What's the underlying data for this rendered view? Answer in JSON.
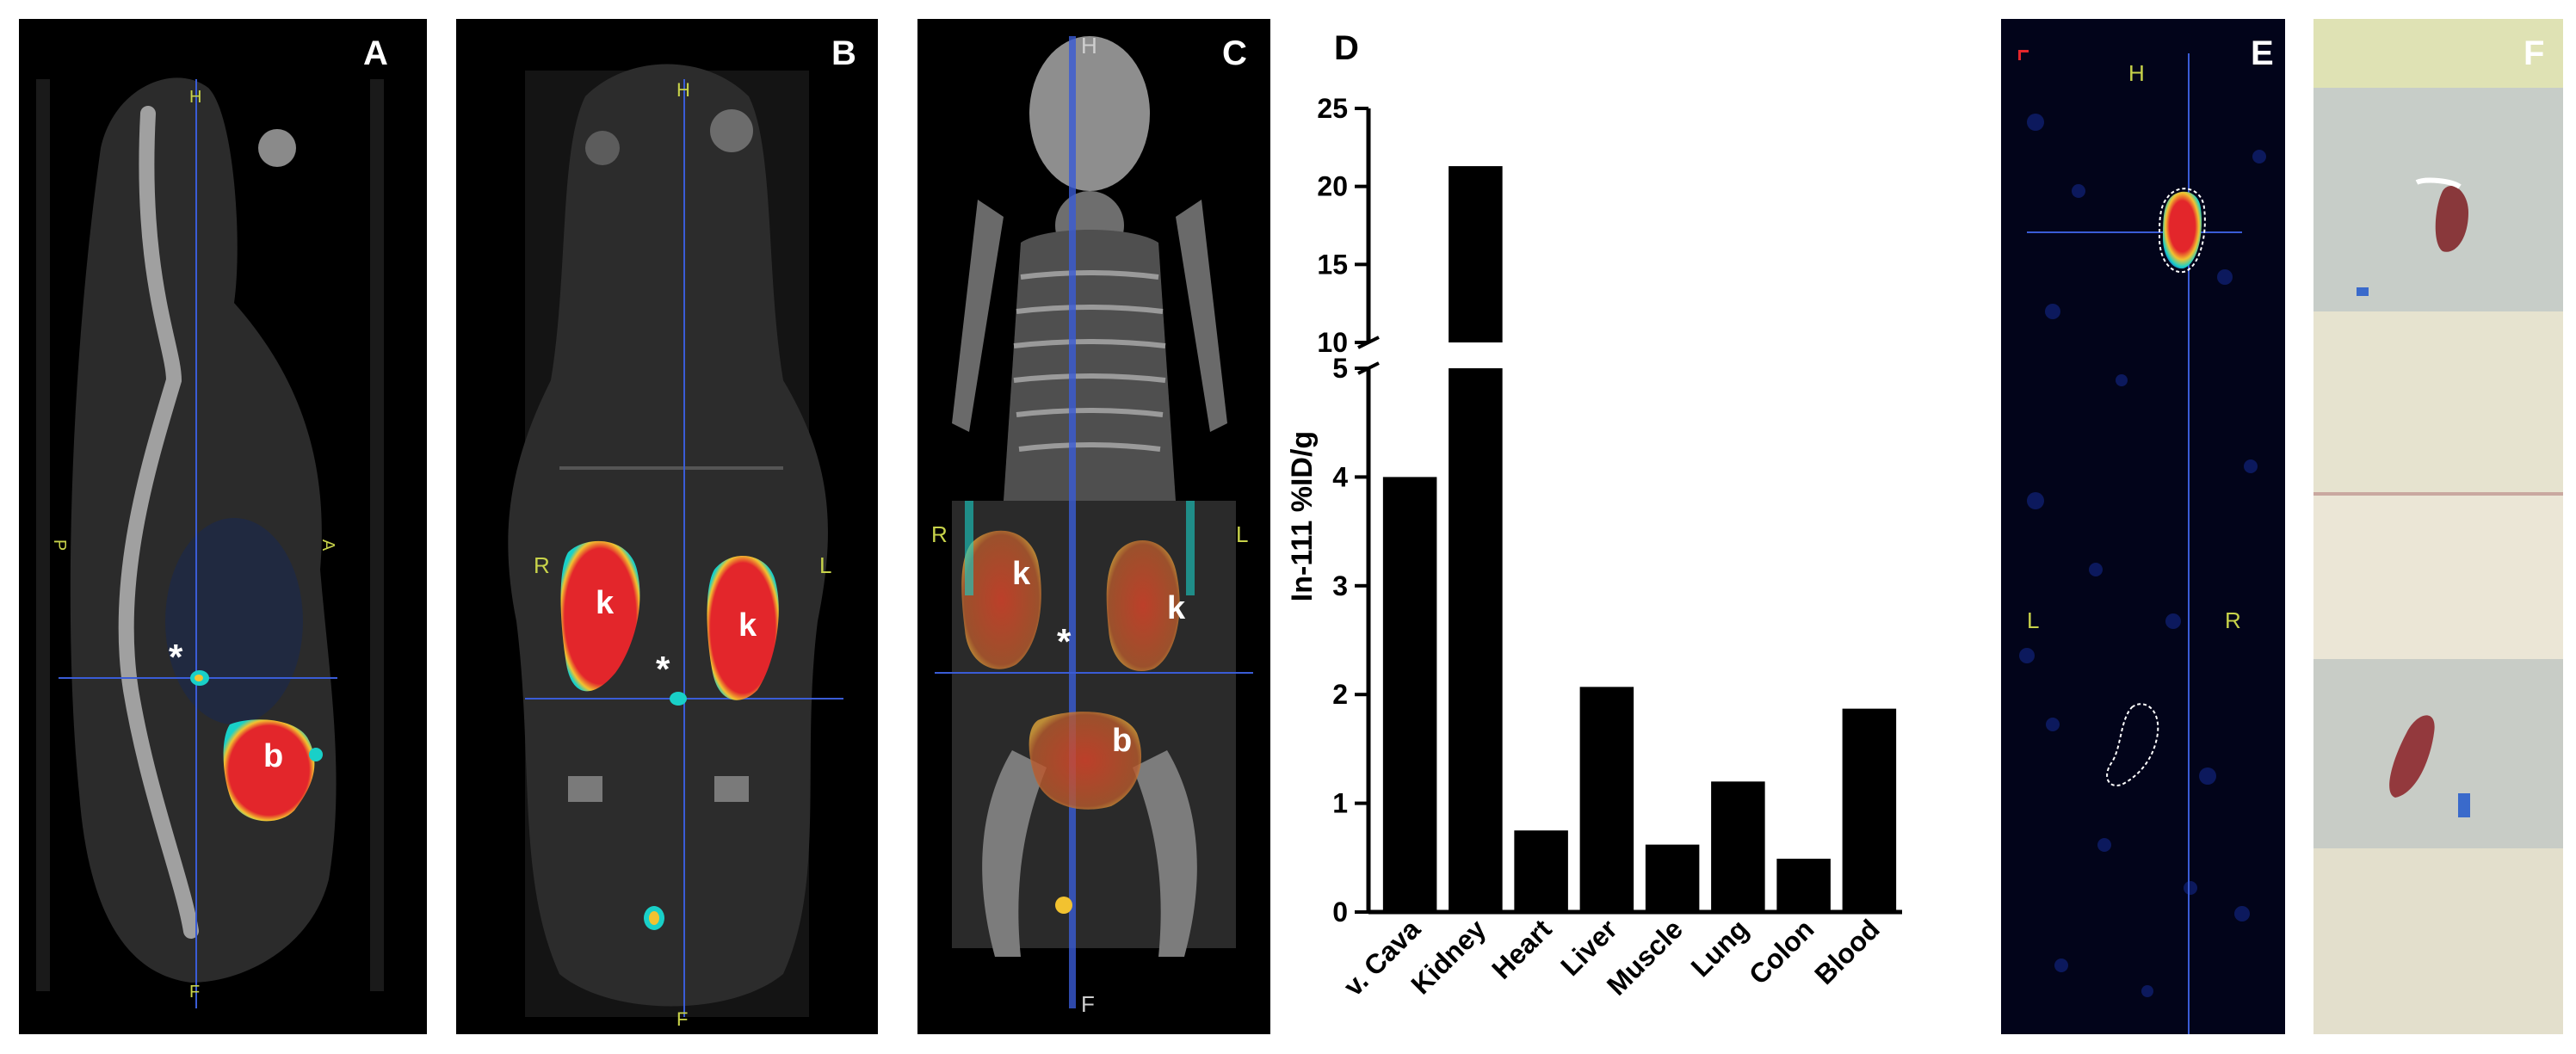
{
  "panels": {
    "A": {
      "label": "A",
      "marks": {
        "P": "P",
        "A": "A",
        "H": "H",
        "F": "F"
      },
      "organs": {
        "bladder": "b"
      },
      "asterisk": "*"
    },
    "B": {
      "label": "B",
      "marks": {
        "H": "H",
        "F": "F",
        "R": "R",
        "L": "L"
      },
      "organs": {
        "kidney_left": "k",
        "kidney_right": "k"
      },
      "asterisk": "*"
    },
    "C": {
      "label": "C",
      "marks": {
        "H": "H",
        "F": "F",
        "R": "R",
        "L": "L"
      },
      "organs": {
        "kidney_left": "k",
        "kidney_right": "k",
        "bladder": "b"
      },
      "asterisk": "*"
    },
    "D": {
      "label": "D"
    },
    "E": {
      "label": "E",
      "marks": {
        "H": "H",
        "L": "L",
        "R": "R"
      }
    },
    "F": {
      "label": "F"
    }
  },
  "colors": {
    "hot": "#e3262b",
    "warm": "#f2c230",
    "cool": "#19d0c8",
    "bar": "#000000"
  },
  "chart_data": {
    "type": "bar",
    "title": "",
    "xlabel": "",
    "ylabel": "In-111  %ID/g",
    "categories": [
      "v. Cava",
      "Kidney",
      "Heart",
      "Liver",
      "Muscle",
      "Lung",
      "Colon",
      "Blood"
    ],
    "values": [
      4.0,
      21.3,
      0.75,
      2.07,
      0.62,
      1.2,
      0.49,
      1.87
    ],
    "y_axis_broken": true,
    "lower_range": [
      0,
      5
    ],
    "upper_range": [
      10,
      25
    ],
    "lower_ticks": [
      "0",
      "1",
      "2",
      "3",
      "4",
      "5"
    ],
    "upper_ticks": [
      "10",
      "15",
      "20",
      "25"
    ]
  }
}
